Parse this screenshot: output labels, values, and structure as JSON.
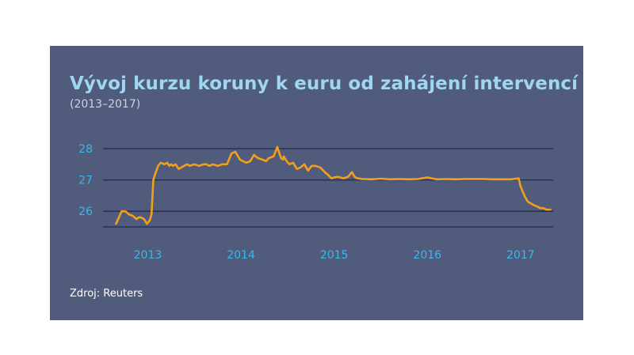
{
  "colors": {
    "panel_bg": "#515b7c",
    "title": "#9fd6f2",
    "tick_labels": "#39b8ee",
    "gridlines": "#1f2a55",
    "line": "#f2a01c",
    "source": "#ffffff"
  },
  "chart_data": {
    "type": "line",
    "title": "Vývoj kurzu koruny k euru od zahájení intervencí",
    "subtitle": "(2013–2017)",
    "source": "Zdroj: Reuters",
    "xlabel": "",
    "ylabel": "",
    "x_ticks": [
      2013,
      2014,
      2015,
      2016,
      2017
    ],
    "y_ticks": [
      26,
      27,
      28
    ],
    "xlim": [
      2012.52,
      2017.35
    ],
    "ylim": [
      25.5,
      28.0
    ],
    "grid": true,
    "legend": "none",
    "series": [
      {
        "x": [
          2012.66,
          2012.72,
          2012.76,
          2012.8,
          2012.84,
          2012.88,
          2012.9,
          2012.93,
          2012.96,
          2012.99,
          2013.02,
          2013.04,
          2013.06,
          2013.08,
          2013.1,
          2013.11,
          2013.14,
          2013.18,
          2013.21,
          2013.23,
          2013.25,
          2013.27,
          2013.3,
          2013.33,
          2013.36,
          2013.39,
          2013.42,
          2013.45,
          2013.5,
          2013.55,
          2013.6,
          2013.63,
          2013.66,
          2013.7,
          2013.75,
          2013.8,
          2013.85,
          2013.9,
          2013.94,
          2013.97,
          2013.99,
          2014.02,
          2014.06,
          2014.1,
          2014.14,
          2014.18,
          2014.23,
          2014.27,
          2014.3,
          2014.35,
          2014.39,
          2014.43,
          2014.45,
          2014.46,
          2014.49,
          2014.52,
          2014.56,
          2014.6,
          2014.64,
          2014.68,
          2014.72,
          2014.76,
          2014.8,
          2014.85,
          2014.9,
          2014.94,
          2014.97,
          2015.0,
          2015.04,
          2015.1,
          2015.15,
          2015.19,
          2015.22,
          2015.25,
          2015.3,
          2015.4,
          2015.5,
          2015.6,
          2015.7,
          2015.8,
          2015.9,
          2016.0,
          2016.05,
          2016.1,
          2016.2,
          2016.3,
          2016.4,
          2016.5,
          2016.6,
          2016.7,
          2016.8,
          2016.9,
          2016.98,
          2017.0,
          2017.02,
          2017.05,
          2017.08,
          2017.11,
          2017.14,
          2017.18,
          2017.21,
          2017.24,
          2017.28,
          2017.32
        ],
        "values": [
          25.6,
          26.0,
          26.0,
          25.9,
          25.85,
          25.75,
          25.8,
          25.8,
          25.75,
          25.6,
          25.7,
          25.9,
          27.0,
          27.2,
          27.35,
          27.45,
          27.55,
          27.5,
          27.55,
          27.45,
          27.5,
          27.45,
          27.5,
          27.35,
          27.4,
          27.45,
          27.5,
          27.45,
          27.5,
          27.45,
          27.5,
          27.5,
          27.45,
          27.5,
          27.45,
          27.5,
          27.5,
          27.85,
          27.9,
          27.75,
          27.65,
          27.6,
          27.55,
          27.6,
          27.8,
          27.7,
          27.65,
          27.6,
          27.7,
          27.75,
          28.05,
          27.7,
          27.65,
          27.75,
          27.6,
          27.5,
          27.55,
          27.35,
          27.4,
          27.5,
          27.3,
          27.45,
          27.45,
          27.4,
          27.25,
          27.15,
          27.05,
          27.08,
          27.1,
          27.05,
          27.1,
          27.25,
          27.1,
          27.05,
          27.03,
          27.02,
          27.04,
          27.02,
          27.03,
          27.02,
          27.03,
          27.08,
          27.05,
          27.02,
          27.03,
          27.02,
          27.03,
          27.03,
          27.03,
          27.02,
          27.02,
          27.02,
          27.05,
          26.8,
          26.65,
          26.45,
          26.3,
          26.25,
          26.2,
          26.15,
          26.1,
          26.1,
          26.05,
          26.05
        ]
      }
    ]
  }
}
